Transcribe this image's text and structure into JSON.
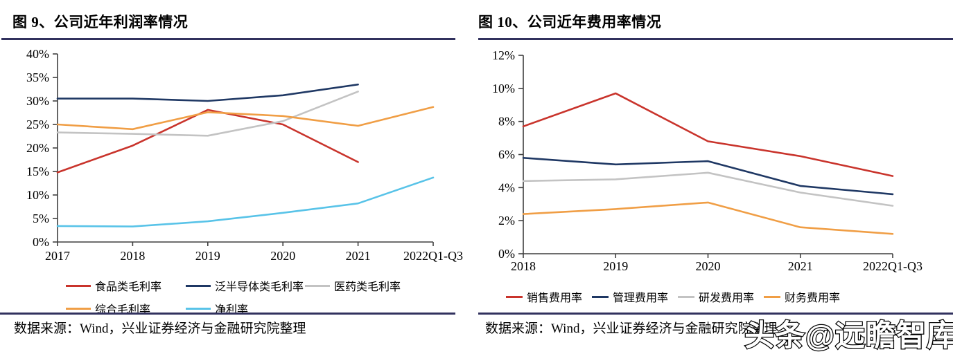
{
  "figures": [
    {
      "title": "图 9、公司近年利润率情况",
      "source": "数据来源：Wind，兴业证券经济与金融研究院整理"
    },
    {
      "title": "图 10、公司近年费用率情况",
      "source": "数据来源：Wind，兴业证券经济与金融研究院整理"
    }
  ],
  "watermark": "头条@远瞻智库",
  "colors": {
    "title_rule": "#31315E",
    "axis": "#3f3f3f",
    "red": "#C9342C",
    "navy": "#1F3864",
    "gray": "#C3C3C3",
    "orange": "#F09E45",
    "cyan": "#58C3E8"
  },
  "chart_data": [
    {
      "type": "line",
      "title": "图 9、公司近年利润率情况",
      "categories": [
        "2017",
        "2018",
        "2019",
        "2020",
        "2021",
        "2022Q1-Q3"
      ],
      "series": [
        {
          "name": "食品类毛利率",
          "color": "#C9342C",
          "values": [
            14.8,
            20.5,
            28.1,
            25.0,
            17.0,
            null
          ]
        },
        {
          "name": "泛半导体类毛利率",
          "color": "#1F3864",
          "values": [
            30.5,
            30.5,
            30.0,
            31.2,
            33.5,
            null
          ]
        },
        {
          "name": "医药类毛利率",
          "color": "#C3C3C3",
          "values": [
            23.3,
            23.0,
            22.6,
            25.7,
            32.0,
            null
          ]
        },
        {
          "name": "综合毛利率",
          "color": "#F09E45",
          "values": [
            25.0,
            24.0,
            27.6,
            26.8,
            24.7,
            28.7
          ]
        },
        {
          "name": "净利率",
          "color": "#58C3E8",
          "values": [
            3.4,
            3.3,
            4.4,
            6.2,
            8.2,
            13.7
          ]
        }
      ],
      "xlabel": "",
      "ylabel": "",
      "ylim": [
        0,
        40
      ],
      "ytick_step": 5,
      "ytick_format": "percent",
      "grid": false,
      "legend_position": "bottom"
    },
    {
      "type": "line",
      "title": "图 10、公司近年费用率情况",
      "categories": [
        "2018",
        "2019",
        "2020",
        "2021",
        "2022Q1-Q3"
      ],
      "series": [
        {
          "name": "销售费用率",
          "color": "#C9342C",
          "values": [
            7.7,
            9.7,
            6.8,
            5.9,
            4.7
          ]
        },
        {
          "name": "管理费用率",
          "color": "#1F3864",
          "values": [
            5.8,
            5.4,
            5.6,
            4.1,
            3.6
          ]
        },
        {
          "name": "研发费用率",
          "color": "#C3C3C3",
          "values": [
            4.4,
            4.5,
            4.9,
            3.7,
            2.9
          ]
        },
        {
          "name": "财务费用率",
          "color": "#F09E45",
          "values": [
            2.4,
            2.7,
            3.1,
            1.6,
            1.2
          ]
        }
      ],
      "xlabel": "",
      "ylabel": "",
      "ylim": [
        0,
        12
      ],
      "ytick_step": 2,
      "ytick_format": "percent",
      "grid": false,
      "legend_position": "bottom"
    }
  ]
}
